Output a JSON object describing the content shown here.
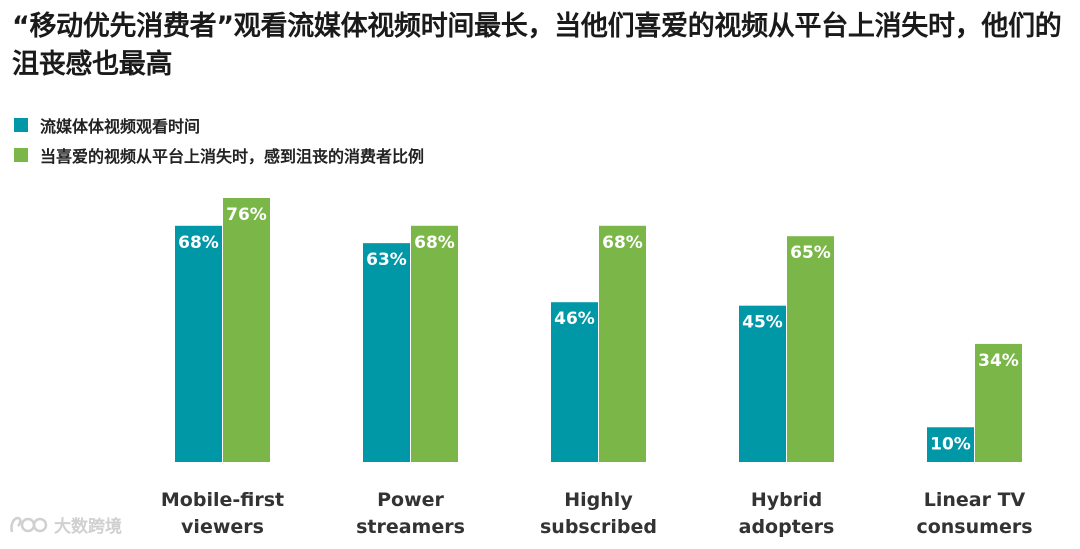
{
  "title": "“移动优先消费者”观看流媒体视频时间最长，当他们喜爱的视频从平台上消失时，他们的沮丧感也最高",
  "watermark": "大数跨境",
  "colors": {
    "teal": "#0097a7",
    "green": "#7ab648"
  },
  "chart_data": {
    "type": "bar",
    "title": "“移动优先消费者”观看流媒体视频时间最长，当他们喜爱的视频从平台上消失时，他们的沮丧感也最高",
    "categories": [
      [
        "Mobile-first",
        "viewers"
      ],
      [
        "Power",
        "streamers"
      ],
      [
        "Highly",
        "subscribed"
      ],
      [
        "Hybrid",
        "adopters"
      ],
      [
        "Linear TV",
        "consumers"
      ]
    ],
    "series": [
      {
        "name": "流媒体体视频观看时间",
        "color": "#0097a7",
        "values": [
          68,
          63,
          46,
          45,
          10
        ],
        "labels": [
          "68%",
          "63%",
          "46%",
          "45%",
          "10%"
        ]
      },
      {
        "name": "当喜爱的视频从平台上消失时，感到沮丧的消费者比例",
        "color": "#7ab648",
        "values": [
          76,
          68,
          68,
          65,
          34
        ],
        "labels": [
          "76%",
          "68%",
          "68%",
          "65%",
          "34%"
        ]
      }
    ],
    "ylim": [
      0,
      100
    ],
    "xlabel": "",
    "ylabel": "",
    "grid": false,
    "legend": "top-left"
  }
}
